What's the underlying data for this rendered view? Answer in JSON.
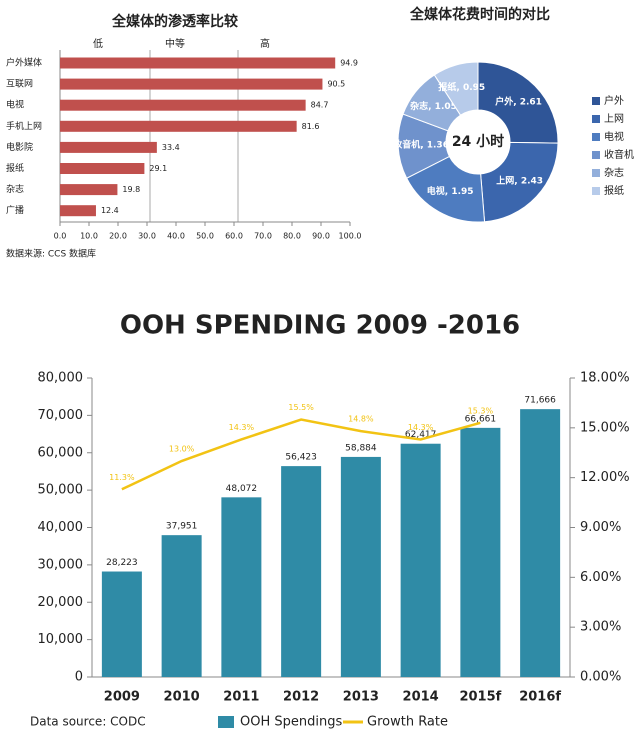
{
  "chart_data": [
    {
      "type": "hbar",
      "title": "全媒体的渗透率比较",
      "annotations": [
        "低",
        "中等",
        "高"
      ],
      "categories": [
        "户外媒体",
        "互联网",
        "电视",
        "手机上网",
        "电影院",
        "报纸",
        "杂志",
        "广播"
      ],
      "values": [
        94.9,
        90.5,
        84.7,
        81.6,
        33.4,
        29.1,
        19.8,
        12.4
      ],
      "color": "#c0504d",
      "xlim": [
        0,
        100
      ],
      "xticks": [
        {
          "value": 0,
          "label": "0.0"
        },
        {
          "value": 10,
          "label": "10.0"
        },
        {
          "value": 20,
          "label": "20.0"
        },
        {
          "value": 30,
          "label": "30.0"
        },
        {
          "value": 40,
          "label": "40.0"
        },
        {
          "value": 50,
          "label": "50.0"
        },
        {
          "value": 60,
          "label": "60.0"
        },
        {
          "value": 70,
          "label": "70.0"
        },
        {
          "value": 80,
          "label": "80.0"
        },
        {
          "value": 90,
          "label": "90.0"
        },
        {
          "value": 100,
          "label": "100.0"
        }
      ],
      "source": "数据来源: CCS 数据库"
    },
    {
      "type": "donut",
      "title": "全媒体花费时间的对比",
      "center_label": "24 小时",
      "categories": [
        "户外",
        "上网",
        "电视",
        "收音机",
        "杂志",
        "报纸"
      ],
      "values": [
        2.61,
        2.43,
        1.95,
        1.36,
        1.05,
        0.95
      ],
      "value_labels": [
        "户外, 2.61",
        "上网, 2.43",
        "电视, 1.95",
        "收音机, 1.36",
        "杂志, 1.05",
        "报纸, 0.95"
      ],
      "colors": [
        "#2f5597",
        "#3b66ad",
        "#4e7cc0",
        "#6f92cc",
        "#93afdb",
        "#b7cbea"
      ]
    },
    {
      "type": "combo",
      "title": "OOH SPENDING 2009 -2016",
      "categories": [
        "2009",
        "2010",
        "2011",
        "2012",
        "2013",
        "2014",
        "2015f",
        "2016f"
      ],
      "series": [
        {
          "name": "OOH Spendings",
          "type": "bar",
          "color": "#2f8ba6",
          "values": [
            28223,
            37951,
            48072,
            56423,
            58884,
            62417,
            66661,
            71666
          ],
          "value_labels": [
            "28,223",
            "37,951",
            "48,072",
            "56,423",
            "58,884",
            "62,417",
            "66,661",
            "71,666"
          ]
        },
        {
          "name": "Growth Rate",
          "type": "line",
          "axis": "y2",
          "color": "#f2c314",
          "values": [
            11.3,
            13.0,
            14.3,
            15.5,
            14.8,
            14.3,
            15.3,
            null
          ],
          "value_labels": [
            "11.3%",
            "13.0%",
            "14.3%",
            "15.5%",
            "14.8%",
            "14.3%",
            "15.3%",
            null
          ]
        }
      ],
      "ylim": [
        0,
        80000
      ],
      "yticks": [
        0,
        {
          "value": 10000,
          "label": "10,000"
        },
        {
          "value": 20000,
          "label": "20,000"
        },
        {
          "value": 30000,
          "label": "30,000"
        },
        {
          "value": 40000,
          "label": "40,000"
        },
        {
          "value": 50000,
          "label": "50,000"
        },
        {
          "value": 60000,
          "label": "60,000"
        },
        {
          "value": 70000,
          "label": "70,000"
        },
        {
          "value": 80000,
          "label": "80,000"
        }
      ],
      "y2lim": [
        0,
        18
      ],
      "y2ticks": [
        {
          "value": 0,
          "label": "0.00%"
        },
        {
          "value": 3,
          "label": "3.00%"
        },
        {
          "value": 6,
          "label": "6.00%"
        },
        {
          "value": 9,
          "label": "9.00%"
        },
        {
          "value": 12,
          "label": "12.00%"
        },
        {
          "value": 15,
          "label": "15.00%"
        },
        {
          "value": 18,
          "label": "18.00%"
        }
      ],
      "source": "Data source: CODC"
    }
  ]
}
